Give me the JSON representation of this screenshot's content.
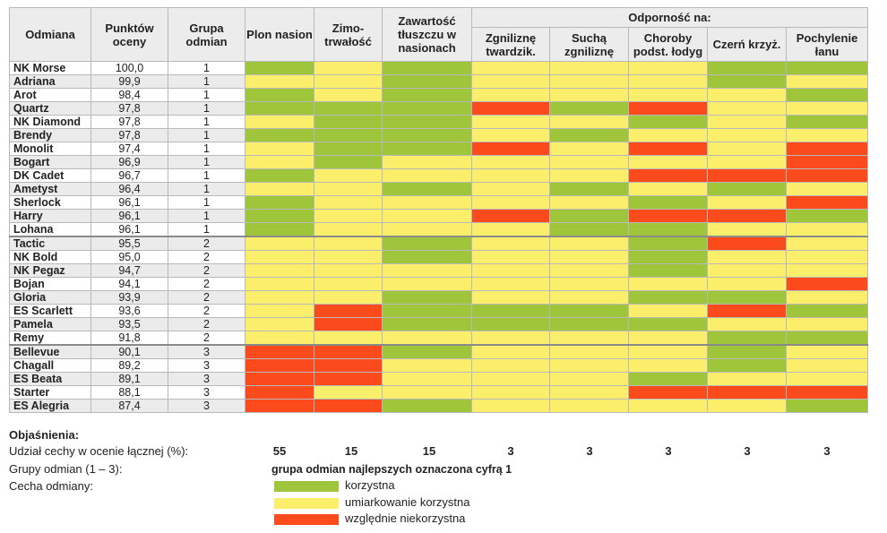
{
  "headers": {
    "name": "Odmiana",
    "points": "Punktów oceny",
    "group": "Grupa odmian",
    "yield": "Plon nasion",
    "winter": "Zimo-trwałość",
    "fat": "Zawartość tłuszczu w nasionach",
    "resistance": "Odporność na:",
    "sclerotinia": "Zgniliznę twardzik.",
    "drywilt": "Suchą zgniliznę",
    "stem": "Choroby podst. łodyg",
    "alternaria": "Czerń krzyż.",
    "lodging": "Pochylenie łanu"
  },
  "rows": [
    {
      "name": "NK Morse",
      "points": "100,0",
      "group": "1",
      "cells": [
        "g",
        "y",
        "g",
        "y",
        "y",
        "y",
        "g",
        "g"
      ]
    },
    {
      "name": "Adriana",
      "points": "99,9",
      "group": "1",
      "cells": [
        "y",
        "y",
        "g",
        "y",
        "y",
        "y",
        "g",
        "y"
      ]
    },
    {
      "name": "Arot",
      "points": "98,4",
      "group": "1",
      "cells": [
        "g",
        "y",
        "g",
        "y",
        "y",
        "y",
        "y",
        "g"
      ]
    },
    {
      "name": "Quartz",
      "points": "97,8",
      "group": "1",
      "cells": [
        "g",
        "g",
        "g",
        "r",
        "g",
        "r",
        "y",
        "y"
      ]
    },
    {
      "name": "NK Diamond",
      "points": "97,8",
      "group": "1",
      "cells": [
        "y",
        "g",
        "g",
        "y",
        "y",
        "g",
        "y",
        "g"
      ]
    },
    {
      "name": "Brendy",
      "points": "97,8",
      "group": "1",
      "cells": [
        "g",
        "g",
        "g",
        "y",
        "g",
        "y",
        "y",
        "y"
      ]
    },
    {
      "name": "Monolit",
      "points": "97,4",
      "group": "1",
      "cells": [
        "y",
        "g",
        "g",
        "r",
        "y",
        "r",
        "y",
        "r"
      ]
    },
    {
      "name": "Bogart",
      "points": "96,9",
      "group": "1",
      "cells": [
        "y",
        "g",
        "y",
        "y",
        "y",
        "y",
        "y",
        "r"
      ]
    },
    {
      "name": "DK Cadet",
      "points": "96,7",
      "group": "1",
      "cells": [
        "g",
        "y",
        "y",
        "y",
        "y",
        "r",
        "r",
        "r"
      ]
    },
    {
      "name": "Ametyst",
      "points": "96,4",
      "group": "1",
      "cells": [
        "y",
        "y",
        "g",
        "y",
        "g",
        "y",
        "g",
        "y"
      ]
    },
    {
      "name": "Sherlock",
      "points": "96,1",
      "group": "1",
      "cells": [
        "g",
        "y",
        "y",
        "y",
        "y",
        "g",
        "y",
        "r"
      ]
    },
    {
      "name": "Harry",
      "points": "96,1",
      "group": "1",
      "cells": [
        "g",
        "y",
        "y",
        "r",
        "g",
        "r",
        "r",
        "g"
      ]
    },
    {
      "name": "Lohana",
      "points": "96,1",
      "group": "1",
      "cells": [
        "g",
        "y",
        "y",
        "y",
        "g",
        "g",
        "y",
        "y"
      ]
    },
    {
      "name": "Tactic",
      "points": "95,5",
      "group": "2",
      "cells": [
        "y",
        "y",
        "g",
        "y",
        "y",
        "g",
        "r",
        "y"
      ]
    },
    {
      "name": "NK Bold",
      "points": "95,0",
      "group": "2",
      "cells": [
        "y",
        "y",
        "g",
        "y",
        "y",
        "g",
        "y",
        "y"
      ]
    },
    {
      "name": "NK Pegaz",
      "points": "94,7",
      "group": "2",
      "cells": [
        "y",
        "y",
        "y",
        "y",
        "y",
        "g",
        "y",
        "y"
      ]
    },
    {
      "name": "Bojan",
      "points": "94,1",
      "group": "2",
      "cells": [
        "y",
        "y",
        "y",
        "y",
        "y",
        "y",
        "y",
        "r"
      ]
    },
    {
      "name": "Gloria",
      "points": "93,9",
      "group": "2",
      "cells": [
        "y",
        "y",
        "g",
        "y",
        "y",
        "g",
        "g",
        "y"
      ]
    },
    {
      "name": "ES Scarlett",
      "points": "93,6",
      "group": "2",
      "cells": [
        "y",
        "r",
        "g",
        "g",
        "g",
        "y",
        "r",
        "g"
      ]
    },
    {
      "name": "Pamela",
      "points": "93,5",
      "group": "2",
      "cells": [
        "y",
        "r",
        "g",
        "g",
        "g",
        "g",
        "y",
        "y"
      ]
    },
    {
      "name": "Remy",
      "points": "91,8",
      "group": "2",
      "cells": [
        "y",
        "y",
        "y",
        "y",
        "y",
        "y",
        "g",
        "g"
      ]
    },
    {
      "name": "Bellevue",
      "points": "90,1",
      "group": "3",
      "cells": [
        "r",
        "r",
        "g",
        "y",
        "y",
        "y",
        "g",
        "y"
      ]
    },
    {
      "name": "Chagall",
      "points": "89,2",
      "group": "3",
      "cells": [
        "r",
        "r",
        "y",
        "y",
        "y",
        "y",
        "g",
        "y"
      ]
    },
    {
      "name": "ES Beata",
      "points": "89,1",
      "group": "3",
      "cells": [
        "r",
        "r",
        "y",
        "y",
        "y",
        "g",
        "y",
        "y"
      ]
    },
    {
      "name": "Starter",
      "points": "88,1",
      "group": "3",
      "cells": [
        "r",
        "y",
        "y",
        "y",
        "y",
        "r",
        "r",
        "r"
      ]
    },
    {
      "name": "ES Alegria",
      "points": "87,4",
      "group": "3",
      "cells": [
        "r",
        "r",
        "g",
        "y",
        "y",
        "y",
        "y",
        "g"
      ]
    }
  ],
  "legend": {
    "title": "Objaśnienia:",
    "share_label": "Udział cechy w ocenie łącznej (%):",
    "share_values": [
      "55",
      "15",
      "15",
      "3",
      "3",
      "3",
      "3",
      "3"
    ],
    "groups_label": "Grupy odmian (1 – 3):",
    "groups_note": "grupa odmian najlepszych oznaczona cyfrą 1",
    "trait_label": "Cecha odmiany:",
    "items": [
      {
        "label": "korzystna",
        "color": "#9fc63b"
      },
      {
        "label": "umiarkowanie korzystna",
        "color": "#fbee6a"
      },
      {
        "label": "względnie niekorzystna",
        "color": "#fb4a1c"
      }
    ]
  }
}
